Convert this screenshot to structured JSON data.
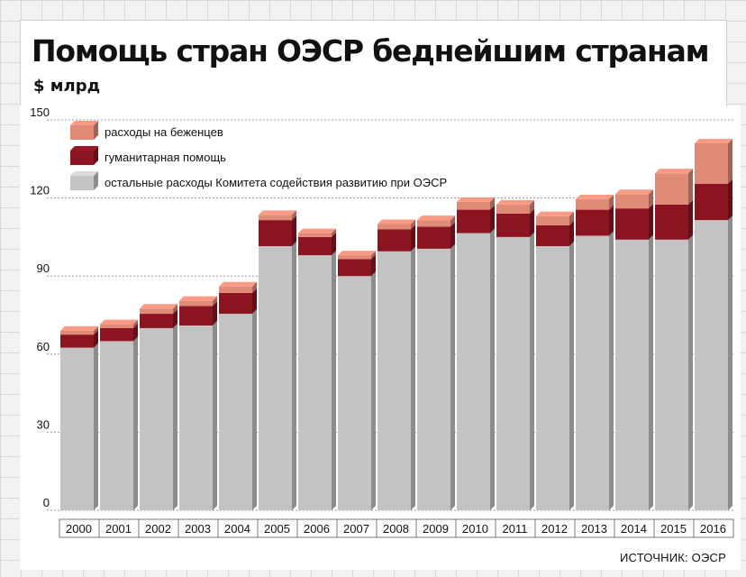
{
  "header": {
    "title": "Помощь стран ОЭСР беднейшим странам",
    "unit": "$ млрд"
  },
  "source": "ИСТОЧНИК: ОЭСР",
  "chart_data": {
    "type": "bar",
    "stacked": true,
    "title": "Помощь стран ОЭСР беднейшим странам",
    "ylabel": "$ млрд",
    "xlabel": "",
    "ylim": [
      0,
      150
    ],
    "yticks": [
      0,
      30,
      60,
      90,
      120,
      150
    ],
    "grid": true,
    "legend_position": "top-left",
    "categories": [
      "2000",
      "2001",
      "2002",
      "2003",
      "2004",
      "2005",
      "2006",
      "2007",
      "2008",
      "2009",
      "2010",
      "2011",
      "2012",
      "2013",
      "2014",
      "2015",
      "2016"
    ],
    "series": [
      {
        "name": "остальные расходы Комитета содействия развитию при ОЭСР",
        "color": "#c3c3c3",
        "values": [
          62.5,
          65,
          70,
          71,
          75.5,
          101.5,
          98,
          90,
          99.5,
          100.5,
          106.5,
          105,
          101.5,
          105.5,
          104,
          104,
          111.5
        ]
      },
      {
        "name": "гуманитарная помощь",
        "color": "#8c1420",
        "values": [
          5,
          5,
          5.5,
          7.5,
          8,
          10,
          7,
          6.5,
          8.5,
          8.5,
          9,
          9,
          8,
          10,
          12,
          13.5,
          14
        ]
      },
      {
        "name": "расходы на беженцев",
        "color": "#e08a78",
        "values": [
          1.5,
          1.5,
          2,
          2,
          2.5,
          2,
          1.5,
          1.5,
          2,
          2.5,
          3,
          3.5,
          3.5,
          4,
          5.5,
          12,
          15.5
        ]
      }
    ]
  }
}
